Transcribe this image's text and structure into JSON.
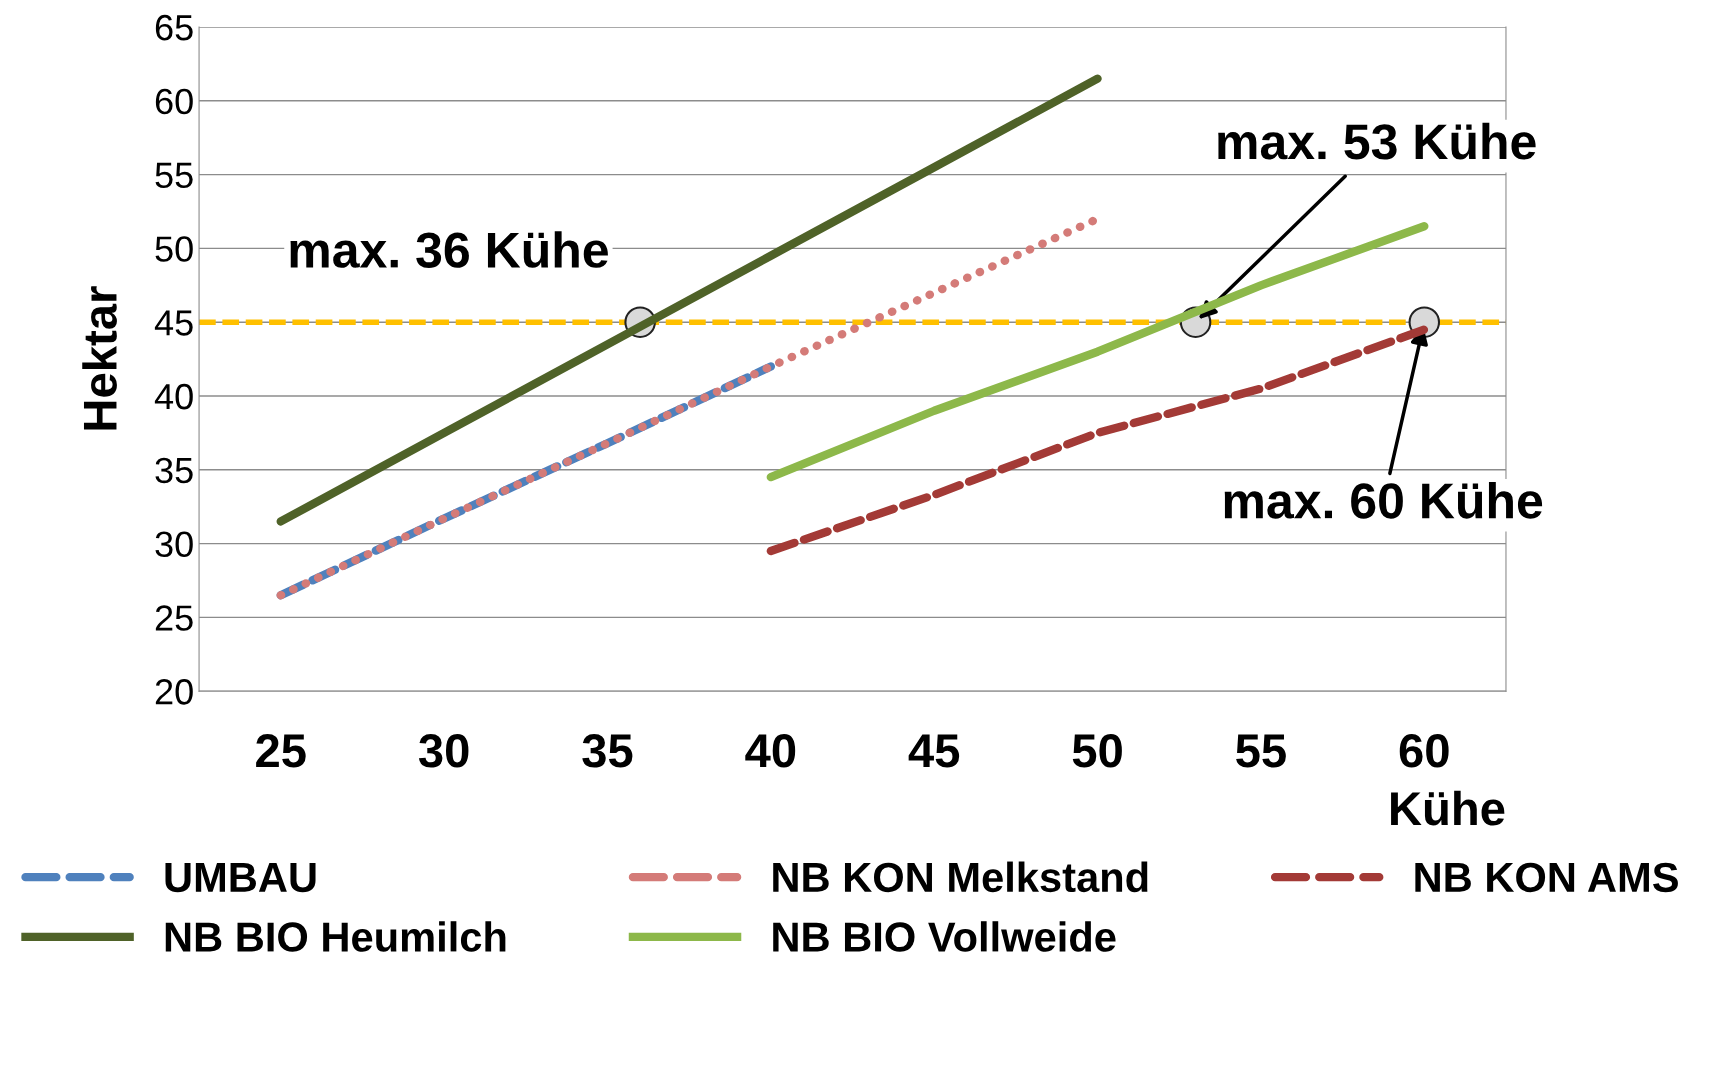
{
  "chart_data": {
    "type": "line",
    "xlabel": "Kühe",
    "ylabel": "Hektar",
    "x": [
      25,
      30,
      35,
      40,
      45,
      50,
      55,
      60
    ],
    "xlim": [
      22.5,
      62.5
    ],
    "xticks": [
      25,
      30,
      35,
      40,
      45,
      50,
      55,
      60
    ],
    "ylim": [
      20,
      65
    ],
    "yticks": [
      20,
      25,
      30,
      35,
      40,
      45,
      50,
      55,
      60,
      65
    ],
    "grid": "y",
    "legend": "bottom",
    "marker": "none",
    "series": [
      {
        "name": "UMBAU",
        "color": "#4f81bd",
        "line_style": "dashed",
        "values": [
          26.5,
          31.7,
          36.8,
          42,
          null,
          null,
          null,
          null
        ]
      },
      {
        "name": "NB KON Melkstand",
        "color": "#d47b78",
        "line_style": "dotted",
        "values": [
          26.5,
          31.7,
          36.8,
          42,
          47,
          52,
          null,
          null
        ]
      },
      {
        "name": "NB KON AMS",
        "color": "#a33a36",
        "line_style": "dashed",
        "values": [
          null,
          null,
          null,
          29.5,
          33.3,
          37.5,
          40.5,
          44.5
        ]
      },
      {
        "name": "NB BIO Heumilch",
        "color": "#4f6228",
        "line_style": "solid",
        "values": [
          31.5,
          37.5,
          43.5,
          49.5,
          55.5,
          61.5,
          null,
          null
        ]
      },
      {
        "name": "NB BIO Vollweide",
        "color": "#8db84a",
        "line_style": "solid",
        "values": [
          null,
          null,
          null,
          34.5,
          39,
          43,
          47.5,
          51.5
        ]
      },
      {
        "type": "scatter",
        "color": "#d9d9d9",
        "marker": "circle",
        "x": [
          36,
          53,
          60
        ],
        "values": [
          45,
          45,
          45
        ]
      }
    ],
    "ref_lines": [
      {
        "axis": "y",
        "value": 45,
        "color": "#ffc000",
        "line_style": "dashed"
      }
    ],
    "annotations": [
      {
        "text": "max. 36 Kühe",
        "x": 36,
        "y": 45
      },
      {
        "text": "max. 53 Kühe",
        "x": 53,
        "y": 45
      },
      {
        "text": "max. 60 Kühe",
        "x": 60,
        "y": 45
      }
    ]
  }
}
